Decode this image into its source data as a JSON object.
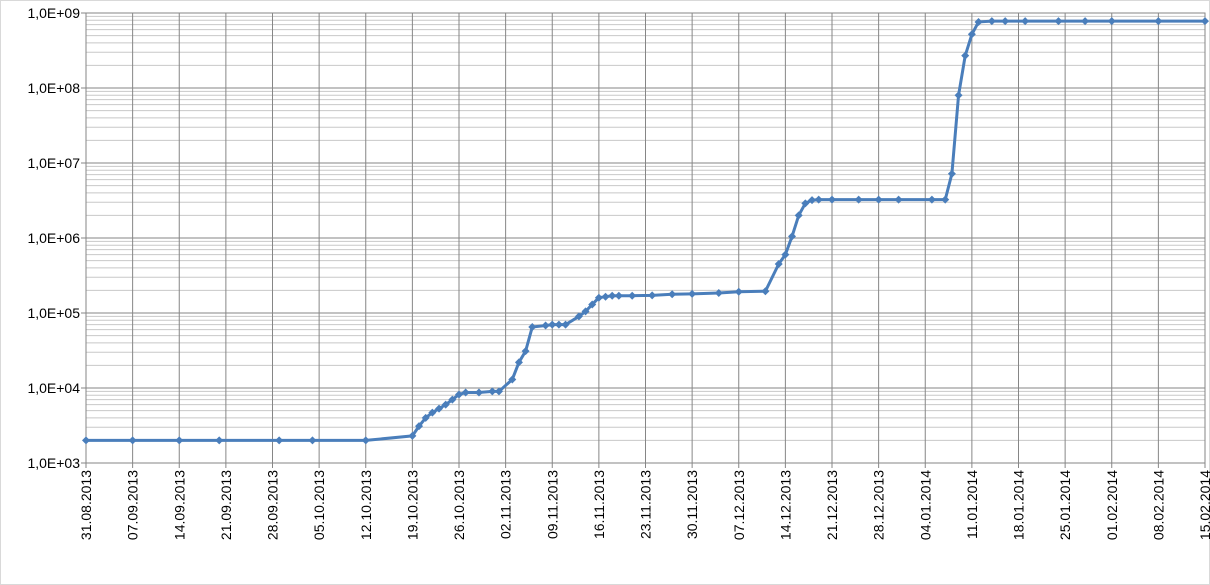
{
  "chart_data": {
    "type": "line",
    "log_scale_y": true,
    "grid": true,
    "minor_grid": true,
    "x": [
      "2013-08-31",
      "2013-09-07",
      "2013-09-14",
      "2013-09-20",
      "2013-09-29",
      "2013-10-04",
      "2013-10-12",
      "2013-10-19",
      "2013-10-20",
      "2013-10-21",
      "2013-10-22",
      "2013-10-23",
      "2013-10-24",
      "2013-10-25",
      "2013-10-26",
      "2013-10-27",
      "2013-10-29",
      "2013-10-31",
      "2013-11-01",
      "2013-11-03",
      "2013-11-04",
      "2013-11-05",
      "2013-11-06",
      "2013-11-08",
      "2013-11-09",
      "2013-11-10",
      "2013-11-11",
      "2013-11-13",
      "2013-11-14",
      "2013-11-15",
      "2013-11-16",
      "2013-11-17",
      "2013-11-18",
      "2013-11-19",
      "2013-11-21",
      "2013-11-24",
      "2013-11-27",
      "2013-11-30",
      "2013-12-04",
      "2013-12-07",
      "2013-12-11",
      "2013-12-13",
      "2013-12-14",
      "2013-12-15",
      "2013-12-16",
      "2013-12-17",
      "2013-12-18",
      "2013-12-19",
      "2013-12-21",
      "2013-12-25",
      "2013-12-28",
      "2013-12-31",
      "2014-01-05",
      "2014-01-07",
      "2014-01-08",
      "2014-01-09",
      "2014-01-10",
      "2014-01-11",
      "2014-01-12",
      "2014-01-14",
      "2014-01-16",
      "2014-01-19",
      "2014-01-24",
      "2014-01-28",
      "2014-02-01",
      "2014-02-08",
      "2014-02-15"
    ],
    "series": [
      {
        "color": "#4a7ebb",
        "values": [
          2000,
          2000,
          2000,
          2000,
          2000,
          2000,
          2000,
          2300,
          3100,
          4000,
          4700,
          5300,
          6000,
          7000,
          8200,
          8700,
          8700,
          9000,
          9000,
          13000,
          22000,
          31000,
          65000,
          68000,
          70000,
          70000,
          70000,
          90000,
          105000,
          130000,
          160000,
          165000,
          170000,
          170000,
          170000,
          172000,
          178000,
          180000,
          185000,
          192000,
          195000,
          450000,
          600000,
          1050000,
          2000000,
          2900000,
          3200000,
          3250000,
          3250000,
          3250000,
          3250000,
          3250000,
          3250000,
          3250000,
          7200000,
          80000000,
          270000000,
          520000000,
          760000000,
          780000000,
          780000000,
          780000000,
          780000000,
          780000000,
          780000000,
          780000000,
          780000000
        ]
      }
    ],
    "xlim": [
      "2013-08-31",
      "2014-02-15"
    ],
    "xticks": [
      {
        "value": "2013-08-31",
        "label": "31.08.2013"
      },
      {
        "value": "2013-09-07",
        "label": "07.09.2013"
      },
      {
        "value": "2013-09-14",
        "label": "14.09.2013"
      },
      {
        "value": "2013-09-21",
        "label": "21.09.2013"
      },
      {
        "value": "2013-09-28",
        "label": "28.09.2013"
      },
      {
        "value": "2013-10-05",
        "label": "05.10.2013"
      },
      {
        "value": "2013-10-12",
        "label": "12.10.2013"
      },
      {
        "value": "2013-10-19",
        "label": "19.10.2013"
      },
      {
        "value": "2013-10-26",
        "label": "26.10.2013"
      },
      {
        "value": "2013-11-02",
        "label": "02.11.2013"
      },
      {
        "value": "2013-11-09",
        "label": "09.11.2013"
      },
      {
        "value": "2013-11-16",
        "label": "16.11.2013"
      },
      {
        "value": "2013-11-23",
        "label": "23.11.2013"
      },
      {
        "value": "2013-11-30",
        "label": "30.11.2013"
      },
      {
        "value": "2013-12-07",
        "label": "07.12.2013"
      },
      {
        "value": "2013-12-14",
        "label": "14.12.2013"
      },
      {
        "value": "2013-12-21",
        "label": "21.12.2013"
      },
      {
        "value": "2013-12-28",
        "label": "28.12.2013"
      },
      {
        "value": "2014-01-04",
        "label": "04.01.2014"
      },
      {
        "value": "2014-01-11",
        "label": "11.01.2014"
      },
      {
        "value": "2014-01-18",
        "label": "18.01.2014"
      },
      {
        "value": "2014-01-25",
        "label": "25.01.2014"
      },
      {
        "value": "2014-02-01",
        "label": "01.02.2014"
      },
      {
        "value": "2014-02-08",
        "label": "08.02.2014"
      },
      {
        "value": "2014-02-15",
        "label": "15.02.2014"
      }
    ],
    "ylim": [
      1000,
      1000000000
    ],
    "yticks": [
      {
        "value": 1000,
        "label": "1,0E+03"
      },
      {
        "value": 10000,
        "label": "1,0E+04"
      },
      {
        "value": 100000,
        "label": "1,0E+05"
      },
      {
        "value": 1000000,
        "label": "1,0E+06"
      },
      {
        "value": 10000000,
        "label": "1,0E+07"
      },
      {
        "value": 100000000,
        "label": "1,0E+08"
      },
      {
        "value": 1000000000,
        "label": "1,0E+09"
      }
    ]
  }
}
